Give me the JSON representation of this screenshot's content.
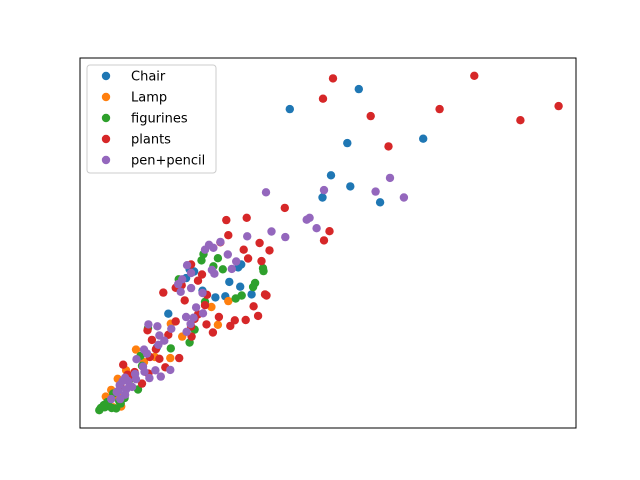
{
  "chart_data": {
    "type": "scatter",
    "title": "",
    "xlabel": "",
    "ylabel": "",
    "xlim": [
      0,
      100
    ],
    "ylim": [
      0,
      100
    ],
    "xticks_visible": false,
    "yticks_visible": false,
    "grid": false,
    "legend_position": "top-left",
    "series": [
      {
        "name": "Chair",
        "color": "#1f77b4",
        "points": [
          [
            42.3,
            86.2
          ],
          [
            56.2,
            91.6
          ],
          [
            69.2,
            78.2
          ],
          [
            53.9,
            77.0
          ],
          [
            50.6,
            68.3
          ],
          [
            54.5,
            65.3
          ],
          [
            48.9,
            62.3
          ],
          [
            60.5,
            61.0
          ],
          [
            32.5,
            44.2
          ],
          [
            31.9,
            43.4
          ],
          [
            30.1,
            39.5
          ],
          [
            32.3,
            38.2
          ],
          [
            34.6,
            36.1
          ],
          [
            29.3,
            35.6
          ],
          [
            27.3,
            35.3
          ],
          [
            23.0,
            42.3
          ],
          [
            22.1,
            42.9
          ],
          [
            21.4,
            40.5
          ],
          [
            24.7,
            37.1
          ],
          [
            17.8,
            30.9
          ],
          [
            15.5,
            21.8
          ]
        ]
      },
      {
        "name": "Lamp",
        "color": "#ff7f0e",
        "points": [
          [
            26.5,
            32.7
          ],
          [
            27.8,
            27.9
          ],
          [
            29.9,
            34.3
          ],
          [
            18.3,
            28.2
          ],
          [
            20.6,
            24.7
          ],
          [
            15.1,
            19.2
          ],
          [
            18.2,
            18.9
          ],
          [
            11.3,
            21.2
          ],
          [
            12.9,
            17.8
          ],
          [
            9.3,
            15.6
          ],
          [
            7.6,
            13.3
          ],
          [
            6.3,
            10.3
          ],
          [
            5.2,
            8.5
          ],
          [
            7.5,
            8.8
          ],
          [
            8.3,
            5.8
          ],
          [
            6.7,
            5.6
          ]
        ]
      },
      {
        "name": "figurines",
        "color": "#2ea02c",
        "points": [
          [
            24.9,
            47.0
          ],
          [
            27.8,
            45.9
          ],
          [
            28.8,
            42.9
          ],
          [
            26.9,
            43.7
          ],
          [
            36.9,
            43.2
          ],
          [
            37.0,
            42.4
          ],
          [
            35.3,
            39.2
          ],
          [
            34.9,
            38.1
          ],
          [
            32.6,
            35.8
          ],
          [
            31.4,
            35.0
          ],
          [
            24.5,
            45.3
          ],
          [
            19.9,
            40.2
          ],
          [
            25.2,
            34.1
          ],
          [
            13.7,
            27.0
          ],
          [
            23.1,
            26.6
          ],
          [
            22.1,
            23.1
          ],
          [
            18.3,
            21.5
          ],
          [
            12.2,
            19.5
          ],
          [
            12.5,
            16.8
          ],
          [
            9.9,
            12.9
          ],
          [
            11.7,
            10.4
          ],
          [
            6.7,
            9.3
          ],
          [
            5.5,
            7.0
          ],
          [
            7.9,
            7.3
          ],
          [
            5.0,
            5.6
          ],
          [
            5.8,
            6.0
          ],
          [
            6.4,
            5.4
          ],
          [
            4.2,
            5.4
          ],
          [
            7.3,
            5.3
          ],
          [
            8.2,
            6.6
          ],
          [
            9.0,
            8.1
          ],
          [
            3.9,
            4.8
          ],
          [
            4.8,
            6.2
          ]
        ]
      },
      {
        "name": "plants",
        "color": "#d62728",
        "points": [
          [
            51.0,
            94.5
          ],
          [
            49.0,
            89.0
          ],
          [
            79.5,
            95.2
          ],
          [
            72.5,
            86.2
          ],
          [
            58.6,
            84.3
          ],
          [
            96.5,
            87.0
          ],
          [
            88.8,
            83.2
          ],
          [
            62.2,
            76.1
          ],
          [
            41.3,
            59.5
          ],
          [
            33.6,
            56.8
          ],
          [
            29.5,
            56.2
          ],
          [
            29.9,
            52.1
          ],
          [
            28.3,
            50.2
          ],
          [
            33.0,
            48.2
          ],
          [
            36.2,
            50.0
          ],
          [
            33.9,
            45.8
          ],
          [
            36.6,
            45.1
          ],
          [
            38.2,
            48.0
          ],
          [
            22.4,
            44.2
          ],
          [
            23.8,
            39.8
          ],
          [
            20.5,
            38.6
          ],
          [
            19.3,
            37.9
          ],
          [
            21.1,
            34.5
          ],
          [
            16.8,
            36.6
          ],
          [
            25.6,
            36.0
          ],
          [
            25.2,
            33.2
          ],
          [
            23.8,
            30.7
          ],
          [
            23.1,
            29.5
          ],
          [
            22.4,
            27.4
          ],
          [
            19.3,
            28.8
          ],
          [
            25.5,
            28.0
          ],
          [
            28.0,
            30.0
          ],
          [
            31.2,
            29.1
          ],
          [
            33.4,
            29.2
          ],
          [
            35.9,
            30.3
          ],
          [
            35.0,
            32.9
          ],
          [
            30.3,
            27.6
          ],
          [
            26.8,
            25.8
          ],
          [
            22.5,
            24.7
          ],
          [
            17.8,
            25.2
          ],
          [
            14.5,
            23.8
          ],
          [
            13.6,
            26.4
          ],
          [
            15.3,
            21.3
          ],
          [
            16.0,
            18.7
          ],
          [
            14.1,
            19.2
          ],
          [
            20.0,
            18.9
          ],
          [
            17.2,
            16.4
          ],
          [
            13.8,
            14.7
          ],
          [
            11.0,
            15.1
          ],
          [
            9.6,
            14.4
          ],
          [
            8.7,
            17.1
          ],
          [
            10.3,
            13.6
          ],
          [
            12.5,
            12.0
          ],
          [
            8.1,
            11.5
          ],
          [
            24.6,
            41.5
          ],
          [
            37.6,
            35.8
          ],
          [
            49.2,
            50.7
          ],
          [
            50.3,
            53.2
          ],
          [
            37.3,
            36.1
          ]
        ]
      },
      {
        "name": "pen+pencil",
        "color": "#9467bd",
        "points": [
          [
            62.5,
            67.6
          ],
          [
            59.6,
            63.9
          ],
          [
            65.3,
            62.3
          ],
          [
            49.2,
            64.3
          ],
          [
            46.3,
            56.8
          ],
          [
            45.7,
            56.3
          ],
          [
            47.7,
            54.0
          ],
          [
            37.5,
            63.7
          ],
          [
            38.6,
            53.1
          ],
          [
            41.4,
            51.6
          ],
          [
            33.7,
            51.8
          ],
          [
            28.3,
            50.3
          ],
          [
            26.0,
            49.5
          ],
          [
            25.2,
            48.2
          ],
          [
            29.8,
            46.9
          ],
          [
            30.6,
            43.0
          ],
          [
            31.5,
            45.0
          ],
          [
            26.9,
            48.7
          ],
          [
            26.6,
            42.7
          ],
          [
            27.1,
            41.7
          ],
          [
            21.6,
            44.0
          ],
          [
            22.4,
            41.9
          ],
          [
            20.6,
            40.2
          ],
          [
            19.8,
            38.9
          ],
          [
            20.3,
            36.8
          ],
          [
            22.4,
            37.8
          ],
          [
            24.7,
            36.5
          ],
          [
            23.4,
            32.6
          ],
          [
            21.4,
            30.0
          ],
          [
            22.9,
            29.8
          ],
          [
            24.8,
            31.0
          ],
          [
            22.3,
            28.1
          ],
          [
            21.5,
            26.0
          ],
          [
            18.4,
            26.8
          ],
          [
            15.6,
            27.5
          ],
          [
            13.8,
            28.0
          ],
          [
            16.0,
            25.0
          ],
          [
            17.0,
            23.6
          ],
          [
            15.8,
            22.5
          ],
          [
            12.9,
            21.2
          ],
          [
            13.5,
            20.1
          ],
          [
            11.4,
            18.6
          ],
          [
            12.7,
            16.6
          ],
          [
            13.0,
            15.2
          ],
          [
            14.0,
            13.5
          ],
          [
            11.3,
            13.2
          ],
          [
            9.7,
            12.7
          ],
          [
            9.1,
            13.6
          ],
          [
            10.0,
            11.4
          ],
          [
            11.1,
            14.6
          ],
          [
            8.6,
            12.7
          ],
          [
            8.0,
            11.6
          ],
          [
            10.5,
            11.1
          ],
          [
            7.7,
            10.0
          ],
          [
            9.3,
            10.4
          ],
          [
            7.4,
            9.7
          ],
          [
            9.1,
            9.0
          ],
          [
            8.1,
            7.8
          ],
          [
            6.3,
            7.8
          ],
          [
            15.2,
            15.6
          ],
          [
            16.3,
            13.9
          ],
          [
            18.2,
            15.7
          ]
        ]
      }
    ]
  }
}
